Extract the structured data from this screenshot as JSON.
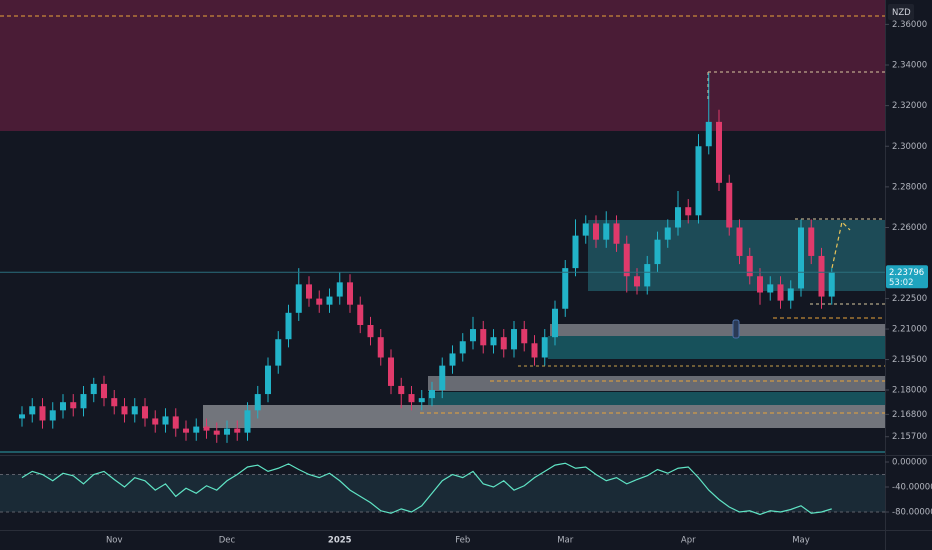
{
  "chart_data": [
    {
      "type": "candlestick",
      "axis_label": "NZD",
      "categories": [
        null,
        null,
        null,
        null,
        null,
        null,
        null,
        null,
        null,
        "Nov",
        null,
        null,
        null,
        null,
        null,
        null,
        null,
        null,
        null,
        null,
        "Dec",
        null,
        null,
        null,
        null,
        null,
        null,
        null,
        null,
        null,
        null,
        "2025",
        null,
        null,
        null,
        null,
        null,
        null,
        null,
        null,
        null,
        null,
        null,
        "Feb",
        null,
        null,
        null,
        null,
        null,
        null,
        null,
        null,
        null,
        "Mar",
        null,
        null,
        null,
        null,
        null,
        null,
        null,
        null,
        null,
        null,
        null,
        "Apr",
        null,
        null,
        null,
        null,
        null,
        null,
        null,
        null,
        null,
        null,
        "May",
        null,
        null,
        null
      ],
      "open": [
        2.166,
        2.168,
        2.172,
        2.165,
        2.17,
        2.174,
        2.171,
        2.178,
        2.183,
        2.176,
        2.172,
        2.168,
        2.172,
        2.166,
        2.163,
        2.167,
        2.161,
        2.159,
        2.162,
        2.16,
        2.158,
        2.161,
        2.159,
        2.17,
        2.178,
        2.192,
        2.205,
        2.218,
        2.232,
        2.225,
        2.222,
        2.226,
        2.233,
        2.222,
        2.212,
        2.206,
        2.196,
        2.182,
        2.178,
        2.174,
        2.176,
        2.18,
        2.192,
        2.198,
        2.204,
        2.21,
        2.202,
        2.206,
        2.2,
        2.21,
        2.203,
        2.196,
        2.206,
        2.22,
        2.24,
        2.256,
        2.262,
        2.254,
        2.262,
        2.252,
        2.236,
        2.231,
        2.242,
        2.254,
        2.26,
        2.27,
        2.266,
        2.3,
        2.312,
        2.282,
        2.26,
        2.246,
        2.236,
        2.228,
        2.232,
        2.224,
        2.23,
        2.26,
        2.246,
        2.226
      ],
      "high": [
        2.172,
        2.176,
        2.176,
        2.174,
        2.178,
        2.178,
        2.182,
        2.186,
        2.187,
        2.18,
        2.176,
        2.176,
        2.176,
        2.17,
        2.171,
        2.171,
        2.165,
        2.166,
        2.166,
        2.164,
        2.165,
        2.165,
        2.174,
        2.182,
        2.196,
        2.209,
        2.222,
        2.24,
        2.236,
        2.229,
        2.23,
        2.238,
        2.237,
        2.226,
        2.216,
        2.21,
        2.2,
        2.186,
        2.182,
        2.18,
        2.184,
        2.196,
        2.202,
        2.208,
        2.216,
        2.214,
        2.21,
        2.21,
        2.214,
        2.214,
        2.207,
        2.21,
        2.224,
        2.244,
        2.264,
        2.266,
        2.266,
        2.268,
        2.266,
        2.256,
        2.24,
        2.246,
        2.258,
        2.264,
        2.278,
        2.274,
        2.306,
        2.336,
        2.318,
        2.286,
        2.264,
        2.25,
        2.24,
        2.236,
        2.236,
        2.234,
        2.264,
        2.264,
        2.25,
        2.24
      ],
      "low": [
        2.162,
        2.164,
        2.161,
        2.161,
        2.166,
        2.167,
        2.167,
        2.174,
        2.172,
        2.168,
        2.164,
        2.164,
        2.162,
        2.159,
        2.159,
        2.157,
        2.155,
        2.155,
        2.156,
        2.154,
        2.154,
        2.155,
        2.155,
        2.166,
        2.174,
        2.188,
        2.201,
        2.214,
        2.221,
        2.218,
        2.218,
        2.222,
        2.218,
        2.208,
        2.202,
        2.192,
        2.178,
        2.171,
        2.17,
        2.17,
        2.172,
        2.176,
        2.188,
        2.194,
        2.2,
        2.198,
        2.198,
        2.196,
        2.196,
        2.199,
        2.192,
        2.192,
        2.202,
        2.216,
        2.236,
        2.252,
        2.25,
        2.25,
        2.248,
        2.228,
        2.227,
        2.227,
        2.238,
        2.25,
        2.256,
        2.262,
        2.262,
        2.296,
        2.278,
        2.256,
        2.242,
        2.232,
        2.222,
        2.224,
        2.22,
        2.22,
        2.226,
        2.242,
        2.22,
        2.222
      ],
      "close": [
        2.168,
        2.172,
        2.165,
        2.17,
        2.174,
        2.171,
        2.178,
        2.183,
        2.176,
        2.172,
        2.168,
        2.172,
        2.166,
        2.163,
        2.167,
        2.161,
        2.159,
        2.162,
        2.16,
        2.158,
        2.161,
        2.159,
        2.17,
        2.178,
        2.192,
        2.205,
        2.218,
        2.232,
        2.225,
        2.222,
        2.226,
        2.233,
        2.222,
        2.212,
        2.206,
        2.196,
        2.182,
        2.178,
        2.174,
        2.176,
        2.18,
        2.192,
        2.198,
        2.204,
        2.21,
        2.202,
        2.206,
        2.2,
        2.21,
        2.203,
        2.196,
        2.206,
        2.22,
        2.24,
        2.256,
        2.262,
        2.254,
        2.262,
        2.252,
        2.236,
        2.231,
        2.242,
        2.254,
        2.26,
        2.27,
        2.266,
        2.3,
        2.312,
        2.282,
        2.26,
        2.246,
        2.236,
        2.228,
        2.232,
        2.224,
        2.23,
        2.26,
        2.246,
        2.226,
        2.238
      ],
      "up_color": "#22b3c8",
      "down_color": "#e03a6b",
      "last_price": 2.23796,
      "countdown": "53:02",
      "ylim": [
        2.148,
        2.372
      ],
      "yticks": [
        {
          "value": 2.36,
          "label": "2.36000"
        },
        {
          "value": 2.34,
          "label": "2.34000"
        },
        {
          "value": 2.32,
          "label": "2.32000"
        },
        {
          "value": 2.3,
          "label": "2.30000"
        },
        {
          "value": 2.28,
          "label": "2.28000"
        },
        {
          "value": 2.26,
          "label": "2.26000"
        },
        {
          "value": 2.225,
          "label": "2.22500"
        },
        {
          "value": 2.21,
          "label": "2.21000"
        },
        {
          "value": 2.195,
          "label": "2.19500"
        },
        {
          "value": 2.18,
          "label": "2.18000"
        },
        {
          "value": 2.168,
          "label": "2.16800"
        },
        {
          "value": 2.157,
          "label": "2.15700"
        }
      ],
      "grid": false
    },
    {
      "type": "line",
      "color": "#5fe3c4",
      "values": [
        -25,
        -15,
        -20,
        -30,
        -18,
        -22,
        -35,
        -20,
        -15,
        -28,
        -40,
        -25,
        -30,
        -45,
        -35,
        -55,
        -42,
        -50,
        -38,
        -45,
        -30,
        -20,
        -8,
        -5,
        -15,
        -10,
        -3,
        -12,
        -20,
        -25,
        -18,
        -30,
        -45,
        -55,
        -65,
        -78,
        -82,
        -75,
        -80,
        -70,
        -50,
        -30,
        -20,
        -25,
        -15,
        -35,
        -40,
        -30,
        -45,
        -38,
        -25,
        -15,
        -5,
        -2,
        -10,
        -8,
        -20,
        -30,
        -25,
        -35,
        -28,
        -22,
        -12,
        -18,
        -10,
        -8,
        -25,
        -45,
        -60,
        -72,
        -80,
        -78,
        -84,
        -78,
        -80,
        -76,
        -70,
        -82,
        -80,
        -75
      ],
      "levels": [
        -20,
        -80
      ],
      "ylim": [
        -108.8,
        9.6
      ],
      "yticks": [
        {
          "value": 0,
          "label": "0.00000"
        },
        {
          "value": -40,
          "label": "-40.00000"
        },
        {
          "value": -80,
          "label": "-80.00000"
        }
      ],
      "grid": false
    }
  ]
}
